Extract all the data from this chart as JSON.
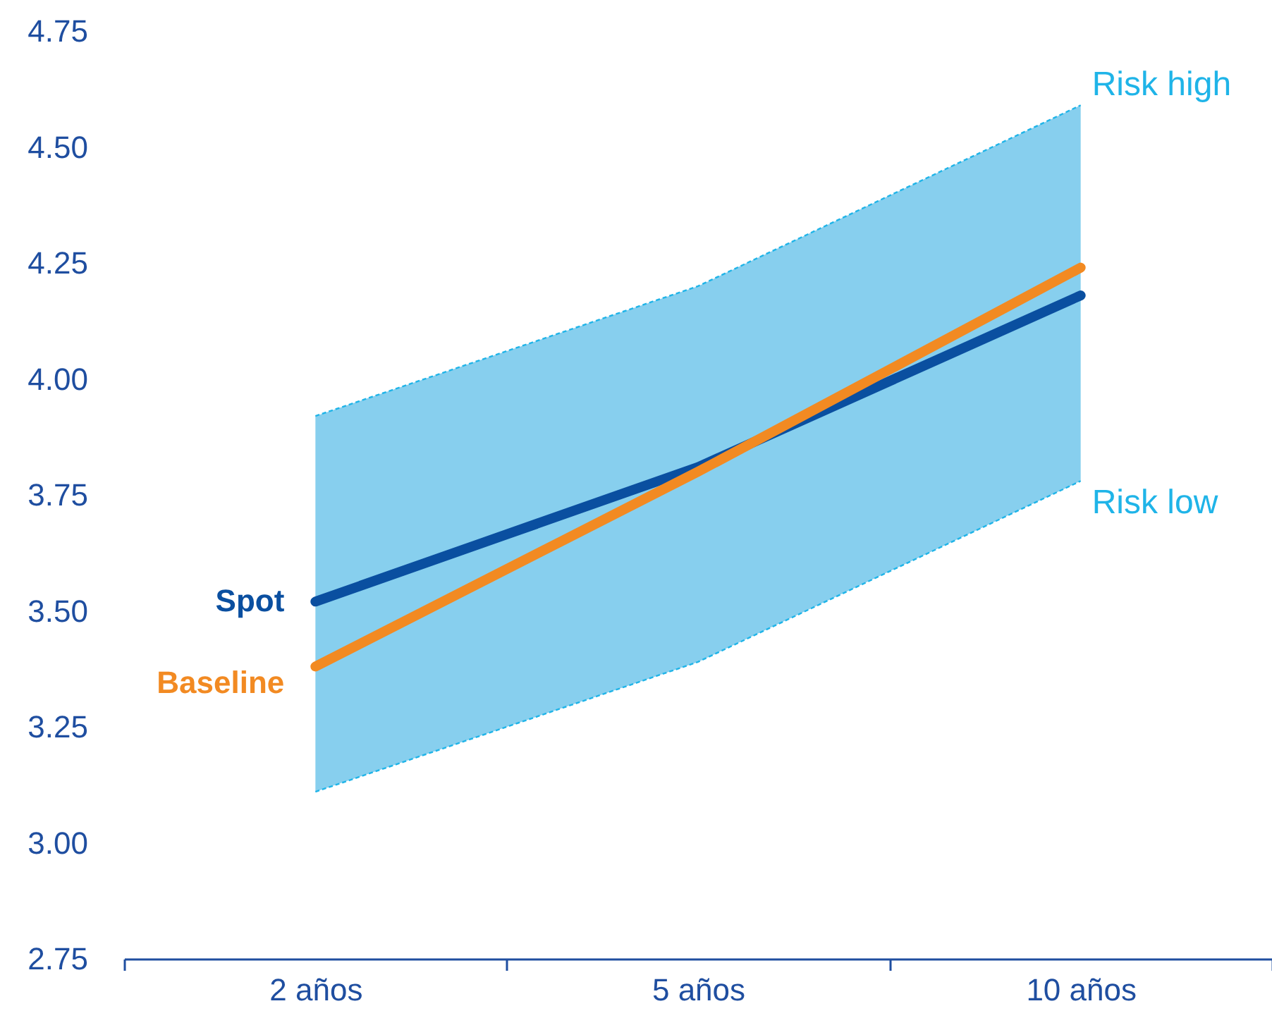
{
  "chart_data": {
    "type": "line",
    "categories": [
      "2 años",
      "5 años",
      "10 años"
    ],
    "ylim": [
      2.75,
      4.75
    ],
    "yticks": [
      2.75,
      {
        "value": 3,
        "label": "3.00"
      },
      3.25,
      {
        "value": 3.5,
        "label": "3.50"
      },
      3.75,
      {
        "value": 4,
        "label": "4.00"
      },
      4.25,
      {
        "value": 4.5,
        "label": "4.50"
      },
      4.75
    ],
    "series": [
      {
        "name": "Spot",
        "color": "#0a4fa0",
        "values": [
          3.52,
          3.81,
          4.18
        ]
      },
      {
        "name": "Baseline",
        "color": "#f28a22",
        "values": [
          3.38,
          3.8,
          4.24
        ],
        "lower": [
          3.11,
          3.39,
          3.78
        ],
        "upper": [
          3.92,
          4.2,
          4.59
        ]
      }
    ],
    "annotations": [
      {
        "text": "Risk high",
        "x": "10 años",
        "y": 4.59
      },
      {
        "text": "Risk low",
        "x": "10 años",
        "y": 3.78
      }
    ],
    "legend": false,
    "grid": false,
    "line_style": "solid",
    "marker": "none"
  }
}
